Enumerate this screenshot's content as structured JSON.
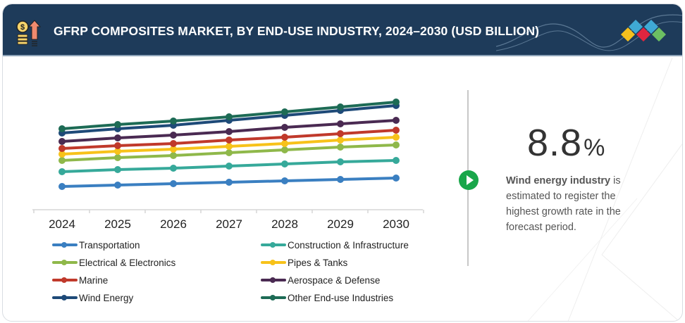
{
  "header": {
    "title": "GFRP COMPOSITES MARKET, BY END-USE INDUSTRY, 2024–2030 (USD BILLION)",
    "left_icon": "money-growth-icon",
    "right_icon": "brand-logo-icon"
  },
  "chart_data": {
    "type": "line",
    "title": "GFRP COMPOSITES MARKET, BY END-USE INDUSTRY, 2024–2030 (USD BILLION)",
    "xlabel": "",
    "ylabel": "",
    "y_axis_shown": false,
    "grid": false,
    "legend_position": "bottom",
    "x": [
      "2024",
      "2025",
      "2026",
      "2027",
      "2028",
      "2029",
      "2030"
    ],
    "ylim": [
      0,
      16
    ],
    "series": [
      {
        "name": "Transportation",
        "color": "#3a7fc1",
        "values": [
          3.3,
          3.5,
          3.7,
          3.9,
          4.1,
          4.3,
          4.5
        ]
      },
      {
        "name": "Construction & Infrastructure",
        "color": "#36a99a",
        "values": [
          5.4,
          5.7,
          5.9,
          6.2,
          6.5,
          6.8,
          7.0
        ]
      },
      {
        "name": "Electrical & Electronics",
        "color": "#8fb84a",
        "values": [
          7.0,
          7.4,
          7.7,
          8.1,
          8.5,
          8.9,
          9.2
        ]
      },
      {
        "name": "Pipes & Tanks",
        "color": "#f7c21a",
        "values": [
          7.9,
          8.3,
          8.6,
          9.0,
          9.4,
          9.9,
          10.3
        ]
      },
      {
        "name": "Marine",
        "color": "#c0392b",
        "values": [
          8.7,
          9.1,
          9.4,
          9.9,
          10.3,
          10.8,
          11.3
        ]
      },
      {
        "name": "Aerospace & Defense",
        "color": "#4a2a52",
        "values": [
          9.7,
          10.2,
          10.6,
          11.1,
          11.7,
          12.2,
          12.7
        ]
      },
      {
        "name": "Wind Energy",
        "color": "#1e4a78",
        "values": [
          10.9,
          11.5,
          12.0,
          12.7,
          13.4,
          14.1,
          14.8
        ]
      },
      {
        "name": "Other End-use Industries",
        "color": "#1d6b55",
        "values": [
          11.5,
          12.1,
          12.6,
          13.2,
          13.9,
          14.6,
          15.3
        ]
      }
    ]
  },
  "legend": {
    "items": [
      {
        "label": "Transportation",
        "color": "#3a7fc1"
      },
      {
        "label": "Construction & Infrastructure",
        "color": "#36a99a"
      },
      {
        "label": "Electrical & Electronics",
        "color": "#8fb84a"
      },
      {
        "label": "Pipes & Tanks",
        "color": "#f7c21a"
      },
      {
        "label": "Marine",
        "color": "#c0392b"
      },
      {
        "label": "Aerospace & Defense",
        "color": "#4a2a52"
      },
      {
        "label": "Wind Energy",
        "color": "#1e4a78"
      },
      {
        "label": "Other End-use Industries",
        "color": "#1d6b55"
      }
    ]
  },
  "stat": {
    "value": "8.8",
    "unit": "%",
    "highlight": "Wind energy industry",
    "text": " is estimated to register the highest growth rate in the forecast period.",
    "play_icon": "play-icon",
    "accent_color": "#19a64a"
  }
}
